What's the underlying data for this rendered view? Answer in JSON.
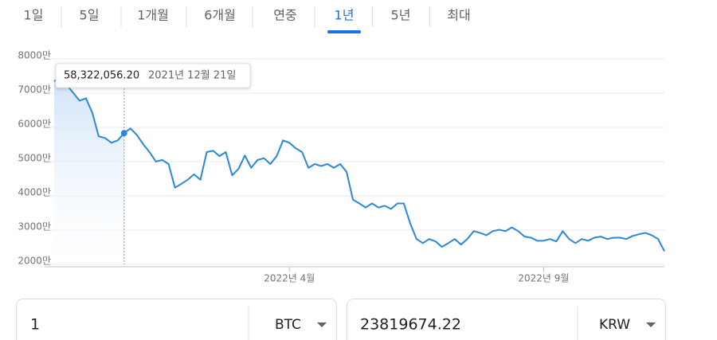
{
  "tabs": {
    "items": [
      "1일",
      "5일",
      "1개월",
      "6개월",
      "연중",
      "1년",
      "5년",
      "최대"
    ],
    "active": 5
  },
  "chart_data": {
    "type": "line",
    "color": "#2b88d8",
    "ylim": [
      20000000,
      80000000
    ],
    "yticks": [
      {
        "value": 80000000,
        "label": "8000만"
      },
      {
        "value": 70000000,
        "label": "7000만"
      },
      {
        "value": 60000000,
        "label": "6000만"
      },
      {
        "value": 50000000,
        "label": "5000만"
      },
      {
        "value": 40000000,
        "label": "4000만"
      },
      {
        "value": 30000000,
        "label": "3000만"
      },
      {
        "value": 20000000,
        "label": "2000만"
      }
    ],
    "grid": true,
    "categories": [
      null,
      null,
      null,
      null,
      null,
      null,
      null,
      null,
      null,
      null,
      null,
      null,
      null,
      null,
      null,
      null,
      null,
      null,
      null,
      null,
      null,
      null,
      null,
      null,
      null,
      null,
      null,
      null,
      null,
      null,
      null,
      null,
      null,
      null,
      null,
      null,
      null,
      "2022년 4월",
      null,
      null,
      null,
      null,
      null,
      null,
      null,
      null,
      null,
      null,
      null,
      null,
      null,
      null,
      null,
      null,
      null,
      null,
      null,
      null,
      null,
      null,
      null,
      null,
      null,
      null,
      null,
      null,
      null,
      null,
      null,
      null,
      null,
      null,
      null,
      null,
      null,
      null,
      null,
      "2022년 9월",
      null,
      null,
      null,
      null,
      null,
      null,
      null,
      null,
      null,
      null,
      null,
      null,
      null,
      null,
      null,
      null,
      null,
      null,
      null
    ],
    "values": [
      73500000,
      74700000,
      72400000,
      70100000,
      67800000,
      68500000,
      64300000,
      57400000,
      56900000,
      55500000,
      56200000,
      58322056.2,
      59700000,
      57800000,
      55100000,
      52800000,
      50000000,
      50500000,
      49300000,
      42400000,
      43500000,
      44700000,
      46300000,
      44700000,
      52800000,
      53200000,
      51600000,
      52800000,
      46000000,
      47900000,
      51800000,
      48200000,
      50500000,
      51000000,
      49300000,
      51600000,
      56200000,
      55500000,
      53900000,
      52800000,
      48200000,
      49300000,
      48700000,
      49300000,
      48200000,
      49300000,
      47000000,
      38900000,
      37800000,
      36600000,
      37800000,
      36600000,
      37100000,
      36200000,
      37800000,
      37800000,
      32000000,
      27400000,
      26200000,
      27400000,
      26700000,
      25100000,
      26200000,
      27400000,
      25800000,
      27400000,
      29700000,
      29200000,
      28500000,
      29700000,
      30100000,
      29700000,
      30800000,
      29700000,
      28100000,
      27800000,
      26900000,
      26900000,
      27400000,
      26700000,
      29700000,
      27400000,
      26200000,
      27400000,
      26900000,
      27800000,
      28100000,
      27400000,
      27800000,
      27800000,
      27400000,
      28300000,
      28800000,
      29200000,
      28500000,
      27400000,
      23819674.22
    ],
    "tooltip": {
      "index": 11,
      "label": "58,322,056.20",
      "date": "2021년 12월 21일"
    }
  },
  "converter": {
    "from_amount": "1",
    "from_unit": "BTC",
    "to_amount": "23819674.22",
    "to_unit": "KRW"
  }
}
